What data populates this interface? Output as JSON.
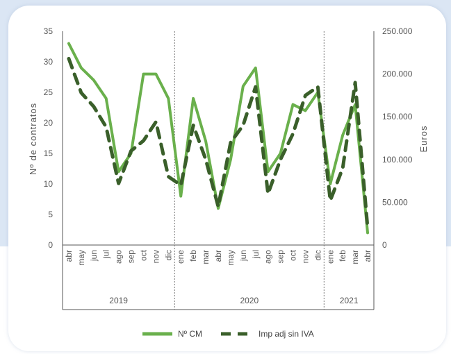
{
  "chart_data": {
    "type": "line",
    "categories": [
      "abr",
      "may",
      "jun",
      "jul",
      "ago",
      "sep",
      "oct",
      "nov",
      "dic",
      "ene",
      "feb",
      "mar",
      "abr",
      "may",
      "jun",
      "jul",
      "ago",
      "sep",
      "oct",
      "nov",
      "dic",
      "ene",
      "feb",
      "mar",
      "abr"
    ],
    "groups": [
      {
        "label": "2019",
        "start": 0,
        "end": 8
      },
      {
        "label": "2020",
        "start": 9,
        "end": 20
      },
      {
        "label": "2021",
        "start": 21,
        "end": 24
      }
    ],
    "series": [
      {
        "name": "Nº CM",
        "axis": "left",
        "color": "#6ab04c",
        "style": "solid",
        "values": [
          33,
          29,
          27,
          24,
          12,
          15,
          28,
          28,
          24,
          8,
          24,
          17,
          6,
          14,
          26,
          29,
          12,
          15,
          23,
          22,
          25,
          10,
          18,
          23,
          2
        ]
      },
      {
        "name": "Imp adj sin IVA",
        "axis": "right",
        "color": "#3a5f2a",
        "style": "dashed",
        "values": [
          218000,
          178000,
          162000,
          138000,
          72000,
          110000,
          122000,
          144000,
          80000,
          70000,
          140000,
          100000,
          45000,
          120000,
          140000,
          185000,
          60000,
          100000,
          130000,
          175000,
          185000,
          52000,
          90000,
          190000,
          20000
        ]
      }
    ],
    "y_left": {
      "label": "Nº de contratos",
      "min": 0,
      "max": 35,
      "ticks": [
        "0",
        "5",
        "10",
        "15",
        "20",
        "25",
        "30",
        "35"
      ]
    },
    "y_right": {
      "label": "Euros",
      "min": 0,
      "max": 250000,
      "ticks": [
        "0",
        "50.000",
        "100.000",
        "150.000",
        "200.000",
        "250.000"
      ]
    },
    "grid": false,
    "legend_position": "bottom"
  },
  "colors": {
    "page_background": "#dbe6f4",
    "card": "#ffffff",
    "axis": "#555555"
  }
}
